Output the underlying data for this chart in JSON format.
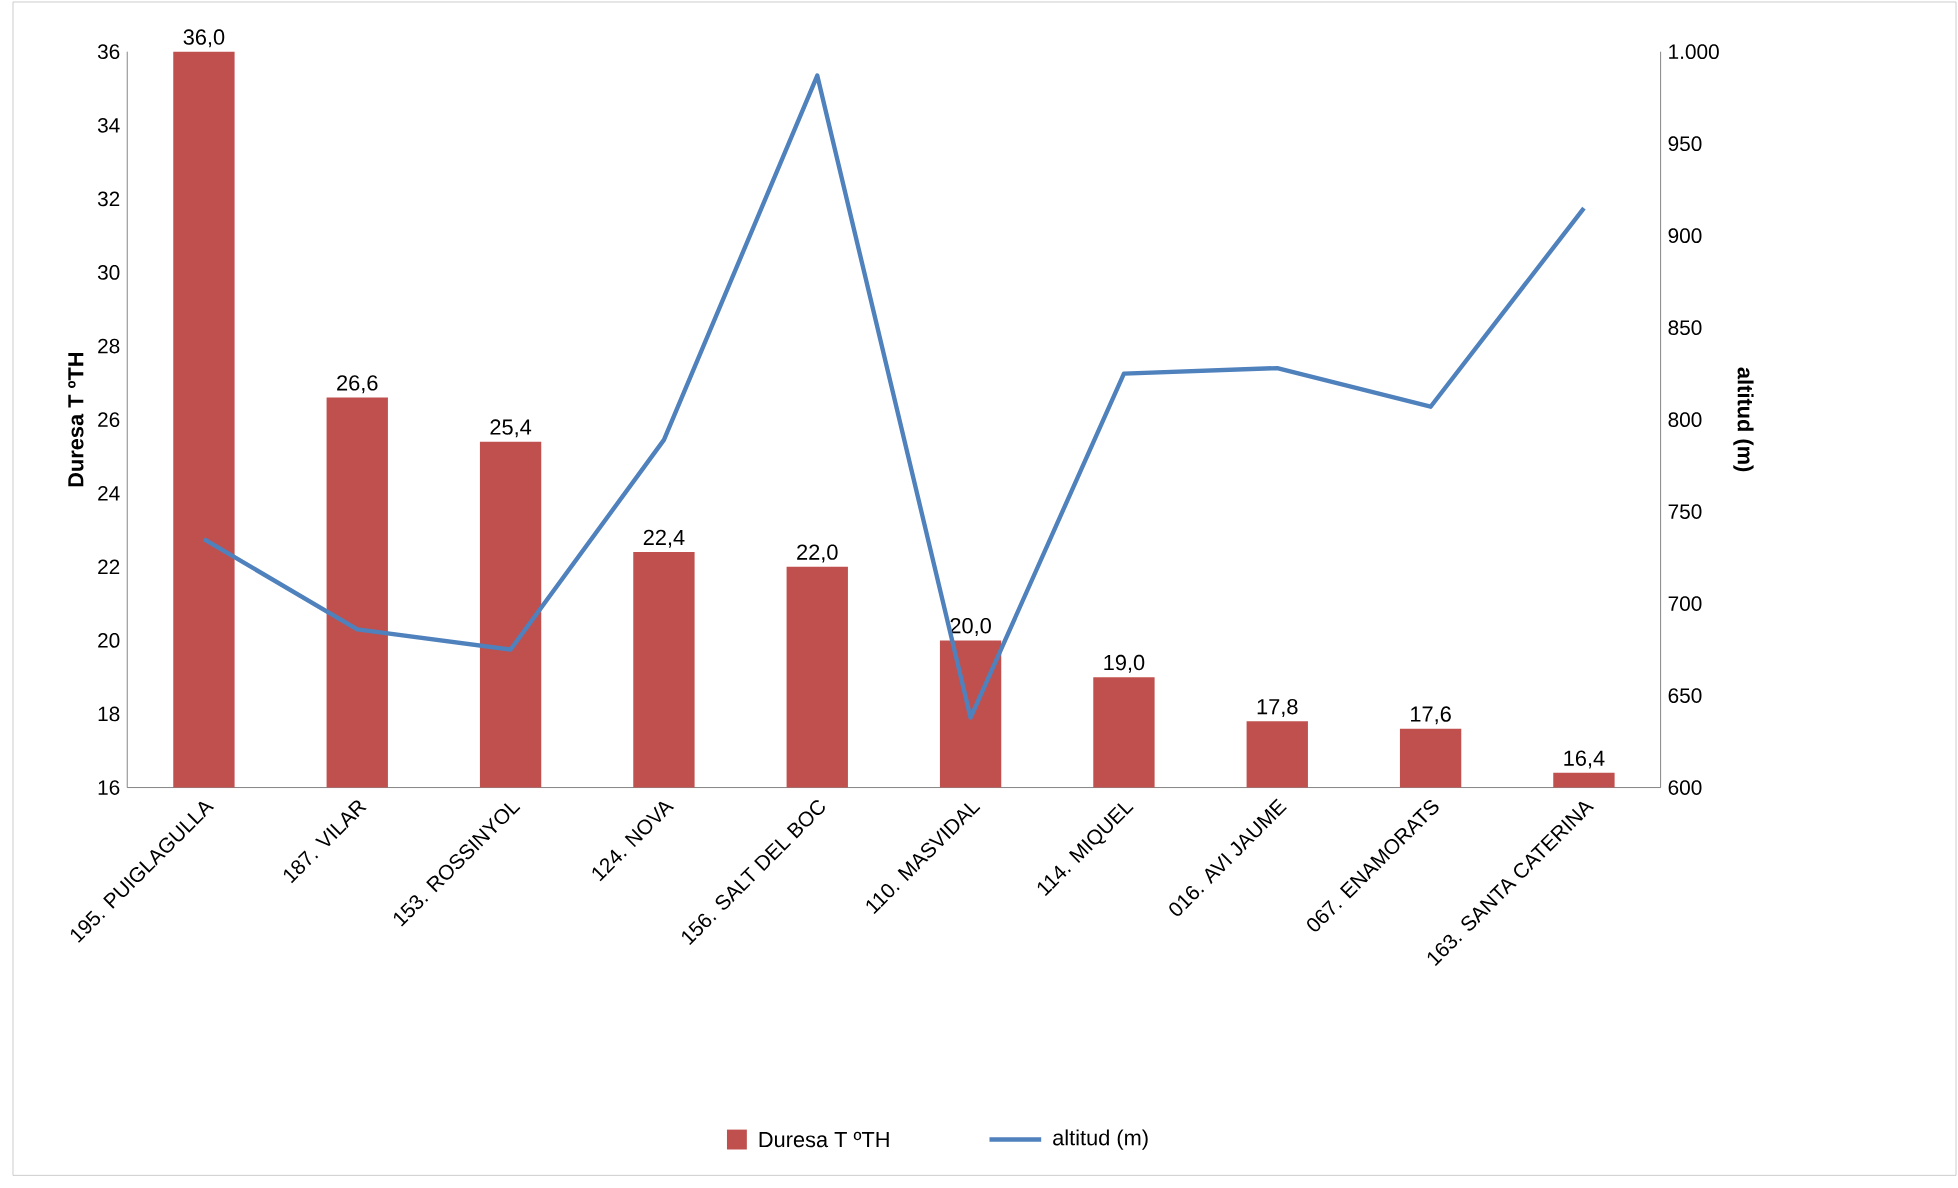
{
  "chart_data": {
    "type": "bar",
    "categories": [
      "195. PUIGLAGULLA",
      "187. VILAR",
      "153. ROSSINYOL",
      "124. NOVA",
      "156. SALT DEL BOC",
      "110. MASVIDAL",
      "114. MIQUEL",
      "016. AVI JAUME",
      "067. ENAMORATS",
      "163. SANTA CATERINA"
    ],
    "series": [
      {
        "name": "Duresa T ºTH",
        "color": "#c0504d",
        "values": [
          36.0,
          26.6,
          25.4,
          22.4,
          22.0,
          20.0,
          19.0,
          17.8,
          17.6,
          16.4
        ],
        "value_labels": [
          "36,0",
          "26,6",
          "25,4",
          "22,4",
          "22,0",
          "20,0",
          "19,0",
          "17,8",
          "17,6",
          "16,4"
        ]
      },
      {
        "name": "altitud (m)",
        "type": "line",
        "axis": "y2",
        "color": "#4f81bd",
        "values": [
          735,
          686,
          675,
          789,
          987,
          638,
          825,
          828,
          807,
          915
        ]
      }
    ],
    "ylabel": "Duresa T ºTH",
    "y2label": "altitud (m)",
    "ylim": [
      16,
      36
    ],
    "yticks": [
      16,
      18,
      20,
      22,
      24,
      26,
      28,
      30,
      32,
      34,
      36
    ],
    "y2lim": [
      600,
      1000
    ],
    "y2ticks": [
      600,
      650,
      700,
      750,
      800,
      850,
      900,
      950,
      {
        "value": 1000,
        "label": "1.000"
      }
    ],
    "legend": "bottom",
    "grid": false
  }
}
